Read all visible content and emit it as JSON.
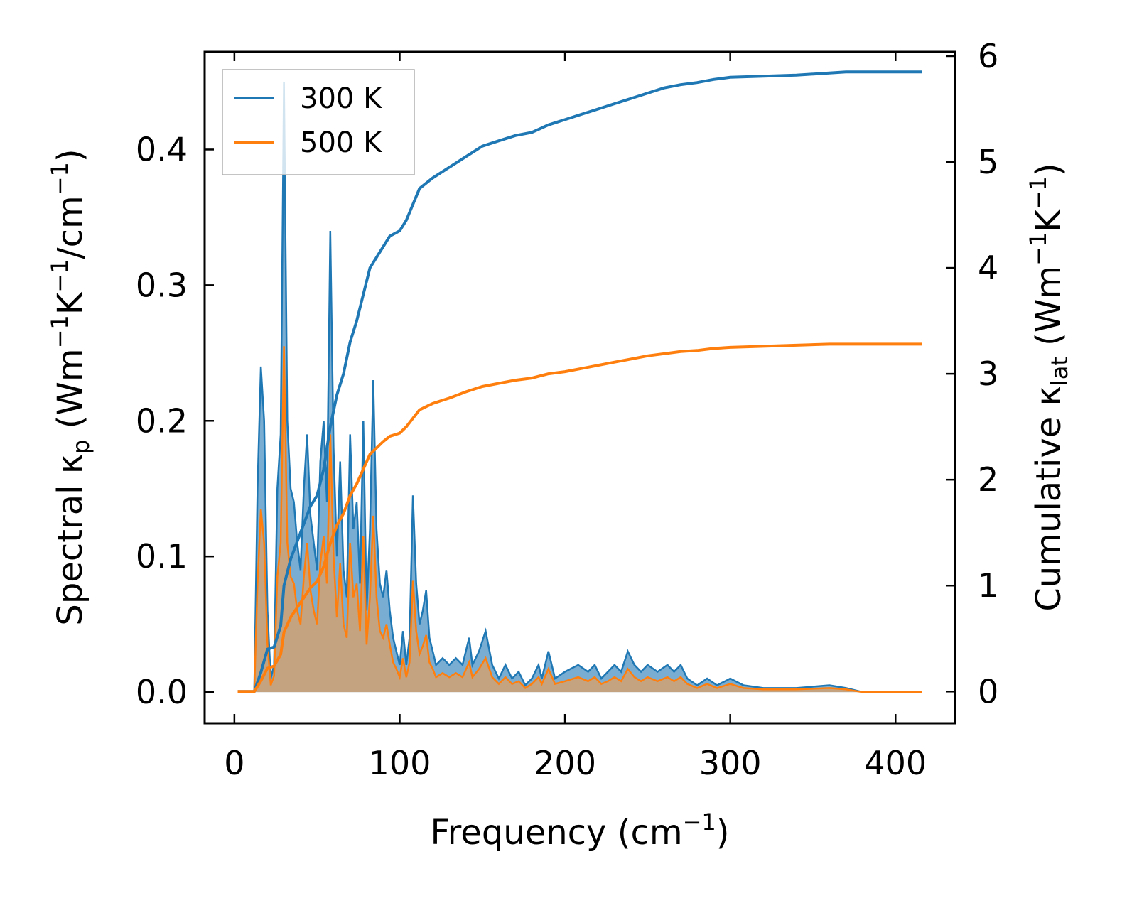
{
  "chart_data": {
    "type": "line",
    "title": "",
    "xlabel": "Frequency (cm",
    "xlabel_sup": "−1",
    "xlabel_end": ")",
    "ylabel_left": {
      "main": "Spectral κ",
      "sub": "p",
      "unit_open": " (Wm",
      "sup1": "−1",
      "mid": "K",
      "sup2": "−1",
      "unit_mid": "/cm",
      "sup3": "−1",
      "unit_close": ")"
    },
    "ylabel_right": {
      "main": "Cumulative κ",
      "sub": "lat",
      "unit_open": " (Wm",
      "sup1": "−1",
      "mid": "K",
      "sup2": "−1",
      "unit_close": ")"
    },
    "xlim": [
      -18,
      436
    ],
    "ylim_left": [
      -0.023,
      0.472
    ],
    "ylim_right": [
      -0.3,
      6.04
    ],
    "x_ticks": [
      0,
      100,
      200,
      300,
      400
    ],
    "x_tick_labels": [
      "0",
      "100",
      "200",
      "300",
      "400"
    ],
    "y_left_ticks": [
      0.0,
      0.1,
      0.2,
      0.3,
      0.4
    ],
    "y_left_tick_labels": [
      "0.0",
      "0.1",
      "0.2",
      "0.3",
      "0.4"
    ],
    "y_right_ticks": [
      0,
      1,
      2,
      3,
      4,
      5,
      6
    ],
    "y_right_tick_labels": [
      "0",
      "1",
      "2",
      "3",
      "4",
      "5",
      "6"
    ],
    "legend_position": "top-left",
    "colors": {
      "series_300": "#1f77b4",
      "series_500": "#ff7f0e",
      "fill_500": "#c8a27c"
    },
    "spectral": {
      "300 K": [
        [
          2,
          0
        ],
        [
          12,
          0
        ],
        [
          14,
          0.15
        ],
        [
          16,
          0.24
        ],
        [
          18,
          0.2
        ],
        [
          20,
          0.06
        ],
        [
          22,
          0.01
        ],
        [
          24,
          0.02
        ],
        [
          26,
          0.15
        ],
        [
          28,
          0.19
        ],
        [
          30,
          0.45
        ],
        [
          32,
          0.2
        ],
        [
          34,
          0.15
        ],
        [
          36,
          0.14
        ],
        [
          38,
          0.11
        ],
        [
          40,
          0.09
        ],
        [
          42,
          0.15
        ],
        [
          44,
          0.19
        ],
        [
          46,
          0.13
        ],
        [
          48,
          0.11
        ],
        [
          50,
          0.09
        ],
        [
          52,
          0.17
        ],
        [
          54,
          0.2
        ],
        [
          56,
          0.14
        ],
        [
          58,
          0.34
        ],
        [
          60,
          0.18
        ],
        [
          62,
          0.1
        ],
        [
          64,
          0.17
        ],
        [
          66,
          0.09
        ],
        [
          68,
          0.07
        ],
        [
          70,
          0.19
        ],
        [
          72,
          0.12
        ],
        [
          74,
          0.14
        ],
        [
          76,
          0.08
        ],
        [
          78,
          0.2
        ],
        [
          80,
          0.06
        ],
        [
          82,
          0.12
        ],
        [
          84,
          0.23
        ],
        [
          86,
          0.12
        ],
        [
          88,
          0.08
        ],
        [
          90,
          0.07
        ],
        [
          92,
          0.09
        ],
        [
          94,
          0.06
        ],
        [
          96,
          0.04
        ],
        [
          98,
          0.03
        ],
        [
          100,
          0.02
        ],
        [
          102,
          0.045
        ],
        [
          104,
          0.02
        ],
        [
          106,
          0.04
        ],
        [
          108,
          0.145
        ],
        [
          110,
          0.08
        ],
        [
          112,
          0.05
        ],
        [
          114,
          0.06
        ],
        [
          116,
          0.075
        ],
        [
          118,
          0.04
        ],
        [
          120,
          0.03
        ],
        [
          122,
          0.02
        ],
        [
          126,
          0.025
        ],
        [
          130,
          0.02
        ],
        [
          134,
          0.025
        ],
        [
          138,
          0.02
        ],
        [
          142,
          0.04
        ],
        [
          144,
          0.02
        ],
        [
          148,
          0.03
        ],
        [
          152,
          0.045
        ],
        [
          156,
          0.02
        ],
        [
          160,
          0.01
        ],
        [
          164,
          0.02
        ],
        [
          168,
          0.01
        ],
        [
          172,
          0.015
        ],
        [
          176,
          0.005
        ],
        [
          180,
          0.01
        ],
        [
          184,
          0.02
        ],
        [
          186,
          0.01
        ],
        [
          190,
          0.03
        ],
        [
          194,
          0.01
        ],
        [
          200,
          0.015
        ],
        [
          208,
          0.02
        ],
        [
          214,
          0.015
        ],
        [
          218,
          0.02
        ],
        [
          222,
          0.01
        ],
        [
          226,
          0.015
        ],
        [
          230,
          0.02
        ],
        [
          234,
          0.015
        ],
        [
          238,
          0.03
        ],
        [
          242,
          0.02
        ],
        [
          246,
          0.015
        ],
        [
          250,
          0.02
        ],
        [
          256,
          0.015
        ],
        [
          262,
          0.02
        ],
        [
          266,
          0.015
        ],
        [
          270,
          0.02
        ],
        [
          274,
          0.01
        ],
        [
          280,
          0.005
        ],
        [
          286,
          0.01
        ],
        [
          292,
          0.005
        ],
        [
          300,
          0.01
        ],
        [
          308,
          0.005
        ],
        [
          320,
          0.003
        ],
        [
          340,
          0.003
        ],
        [
          360,
          0.005
        ],
        [
          370,
          0.003
        ],
        [
          380,
          0
        ],
        [
          416,
          0
        ]
      ],
      "500 K": [
        [
          2,
          0
        ],
        [
          12,
          0
        ],
        [
          14,
          0.08
        ],
        [
          16,
          0.135
        ],
        [
          18,
          0.11
        ],
        [
          20,
          0.035
        ],
        [
          22,
          0.005
        ],
        [
          24,
          0.012
        ],
        [
          26,
          0.085
        ],
        [
          28,
          0.11
        ],
        [
          30,
          0.255
        ],
        [
          32,
          0.11
        ],
        [
          34,
          0.085
        ],
        [
          36,
          0.08
        ],
        [
          38,
          0.06
        ],
        [
          40,
          0.05
        ],
        [
          42,
          0.085
        ],
        [
          44,
          0.11
        ],
        [
          46,
          0.075
        ],
        [
          48,
          0.06
        ],
        [
          50,
          0.05
        ],
        [
          52,
          0.095
        ],
        [
          54,
          0.115
        ],
        [
          56,
          0.08
        ],
        [
          58,
          0.19
        ],
        [
          60,
          0.1
        ],
        [
          62,
          0.055
        ],
        [
          64,
          0.095
        ],
        [
          66,
          0.05
        ],
        [
          68,
          0.04
        ],
        [
          70,
          0.11
        ],
        [
          72,
          0.07
        ],
        [
          74,
          0.08
        ],
        [
          76,
          0.045
        ],
        [
          78,
          0.115
        ],
        [
          80,
          0.035
        ],
        [
          82,
          0.07
        ],
        [
          84,
          0.13
        ],
        [
          86,
          0.07
        ],
        [
          88,
          0.045
        ],
        [
          90,
          0.04
        ],
        [
          92,
          0.05
        ],
        [
          94,
          0.035
        ],
        [
          96,
          0.022
        ],
        [
          98,
          0.017
        ],
        [
          100,
          0.011
        ],
        [
          102,
          0.025
        ],
        [
          104,
          0.011
        ],
        [
          106,
          0.022
        ],
        [
          108,
          0.082
        ],
        [
          110,
          0.045
        ],
        [
          112,
          0.028
        ],
        [
          114,
          0.034
        ],
        [
          116,
          0.042
        ],
        [
          118,
          0.022
        ],
        [
          120,
          0.017
        ],
        [
          122,
          0.011
        ],
        [
          126,
          0.014
        ],
        [
          130,
          0.011
        ],
        [
          134,
          0.014
        ],
        [
          138,
          0.011
        ],
        [
          142,
          0.022
        ],
        [
          144,
          0.011
        ],
        [
          148,
          0.017
        ],
        [
          152,
          0.025
        ],
        [
          156,
          0.011
        ],
        [
          160,
          0.006
        ],
        [
          164,
          0.011
        ],
        [
          168,
          0.006
        ],
        [
          172,
          0.008
        ],
        [
          176,
          0.003
        ],
        [
          180,
          0.006
        ],
        [
          184,
          0.011
        ],
        [
          186,
          0.006
        ],
        [
          190,
          0.017
        ],
        [
          194,
          0.006
        ],
        [
          200,
          0.008
        ],
        [
          208,
          0.011
        ],
        [
          214,
          0.008
        ],
        [
          218,
          0.011
        ],
        [
          222,
          0.006
        ],
        [
          226,
          0.008
        ],
        [
          230,
          0.011
        ],
        [
          234,
          0.008
        ],
        [
          238,
          0.017
        ],
        [
          242,
          0.011
        ],
        [
          246,
          0.008
        ],
        [
          250,
          0.011
        ],
        [
          256,
          0.008
        ],
        [
          262,
          0.011
        ],
        [
          266,
          0.008
        ],
        [
          270,
          0.011
        ],
        [
          274,
          0.006
        ],
        [
          280,
          0.003
        ],
        [
          286,
          0.006
        ],
        [
          292,
          0.003
        ],
        [
          300,
          0.006
        ],
        [
          308,
          0.003
        ],
        [
          320,
          0.002
        ],
        [
          340,
          0.002
        ],
        [
          360,
          0.003
        ],
        [
          370,
          0.002
        ],
        [
          380,
          0
        ],
        [
          416,
          0
        ]
      ]
    },
    "cumulative": {
      "300 K": [
        [
          2,
          0
        ],
        [
          12,
          0
        ],
        [
          16,
          0.18
        ],
        [
          20,
          0.4
        ],
        [
          24,
          0.42
        ],
        [
          28,
          0.62
        ],
        [
          30,
          1.0
        ],
        [
          34,
          1.25
        ],
        [
          40,
          1.5
        ],
        [
          46,
          1.75
        ],
        [
          50,
          1.85
        ],
        [
          54,
          2.1
        ],
        [
          58,
          2.5
        ],
        [
          62,
          2.8
        ],
        [
          66,
          3.0
        ],
        [
          70,
          3.3
        ],
        [
          74,
          3.5
        ],
        [
          78,
          3.75
        ],
        [
          82,
          4.0
        ],
        [
          86,
          4.1
        ],
        [
          90,
          4.2
        ],
        [
          94,
          4.3
        ],
        [
          100,
          4.35
        ],
        [
          104,
          4.45
        ],
        [
          108,
          4.6
        ],
        [
          112,
          4.75
        ],
        [
          116,
          4.8
        ],
        [
          120,
          4.85
        ],
        [
          130,
          4.95
        ],
        [
          140,
          5.05
        ],
        [
          150,
          5.15
        ],
        [
          160,
          5.2
        ],
        [
          170,
          5.25
        ],
        [
          180,
          5.28
        ],
        [
          190,
          5.35
        ],
        [
          200,
          5.4
        ],
        [
          210,
          5.45
        ],
        [
          220,
          5.5
        ],
        [
          230,
          5.55
        ],
        [
          240,
          5.6
        ],
        [
          250,
          5.65
        ],
        [
          260,
          5.7
        ],
        [
          270,
          5.73
        ],
        [
          280,
          5.75
        ],
        [
          290,
          5.78
        ],
        [
          300,
          5.8
        ],
        [
          320,
          5.81
        ],
        [
          340,
          5.82
        ],
        [
          360,
          5.84
        ],
        [
          370,
          5.85
        ],
        [
          380,
          5.85
        ],
        [
          416,
          5.85
        ]
      ],
      "500 K": [
        [
          2,
          0
        ],
        [
          12,
          0
        ],
        [
          16,
          0.1
        ],
        [
          20,
          0.22
        ],
        [
          24,
          0.24
        ],
        [
          28,
          0.35
        ],
        [
          30,
          0.56
        ],
        [
          34,
          0.7
        ],
        [
          40,
          0.84
        ],
        [
          46,
          0.98
        ],
        [
          50,
          1.04
        ],
        [
          54,
          1.18
        ],
        [
          58,
          1.4
        ],
        [
          62,
          1.57
        ],
        [
          66,
          1.68
        ],
        [
          70,
          1.85
        ],
        [
          74,
          1.96
        ],
        [
          78,
          2.1
        ],
        [
          82,
          2.24
        ],
        [
          86,
          2.3
        ],
        [
          90,
          2.36
        ],
        [
          94,
          2.41
        ],
        [
          100,
          2.44
        ],
        [
          104,
          2.5
        ],
        [
          108,
          2.58
        ],
        [
          112,
          2.66
        ],
        [
          116,
          2.69
        ],
        [
          120,
          2.72
        ],
        [
          130,
          2.77
        ],
        [
          140,
          2.83
        ],
        [
          150,
          2.88
        ],
        [
          160,
          2.91
        ],
        [
          170,
          2.94
        ],
        [
          180,
          2.96
        ],
        [
          190,
          3.0
        ],
        [
          200,
          3.02
        ],
        [
          210,
          3.05
        ],
        [
          220,
          3.08
        ],
        [
          230,
          3.11
        ],
        [
          240,
          3.14
        ],
        [
          250,
          3.17
        ],
        [
          260,
          3.19
        ],
        [
          270,
          3.21
        ],
        [
          280,
          3.22
        ],
        [
          290,
          3.24
        ],
        [
          300,
          3.25
        ],
        [
          320,
          3.26
        ],
        [
          340,
          3.27
        ],
        [
          360,
          3.28
        ],
        [
          370,
          3.28
        ],
        [
          380,
          3.28
        ],
        [
          416,
          3.28
        ]
      ]
    },
    "legend": [
      {
        "label": "300 K",
        "color": "#1f77b4"
      },
      {
        "label": "500 K",
        "color": "#ff7f0e"
      }
    ]
  }
}
